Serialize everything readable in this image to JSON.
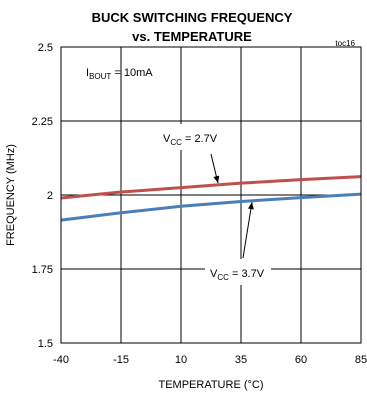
{
  "chart_data": {
    "type": "line",
    "title_line1": "BUCK SWITCHING FREQUENCY",
    "title_line2": "vs. TEMPERATURE",
    "figure_code": "toc16",
    "xlabel": "TEMPERATURE (°C)",
    "ylabel": "FREQUENCY (MHz)",
    "xlim": [
      -40,
      85
    ],
    "ylim": [
      1.5,
      2.5
    ],
    "x_ticks": [
      -40,
      -15,
      10,
      35,
      60,
      85
    ],
    "y_ticks": [
      1.5,
      1.75,
      2,
      2.25,
      2.5
    ],
    "x_tick_labels": [
      "-40",
      "-15",
      "10",
      "35",
      "60",
      "85"
    ],
    "y_tick_labels": [
      "1.5",
      "1.75",
      "2",
      "2.25",
      "2.5"
    ],
    "grid": true,
    "condition": {
      "main": "I",
      "sub": "BOUT",
      "rest": " = 10mA"
    },
    "series": [
      {
        "name": "VCC = 2.7V",
        "label_main": "V",
        "label_sub": "CC",
        "label_rest": " = 2.7V",
        "color": "#c0504d",
        "x": [
          -40,
          -15,
          10,
          35,
          60,
          85
        ],
        "y": [
          1.99,
          2.01,
          2.025,
          2.04,
          2.052,
          2.062
        ]
      },
      {
        "name": "VCC = 3.7V",
        "label_main": "V",
        "label_sub": "CC",
        "label_rest": " = 3.7V",
        "color": "#4a7ebb",
        "x": [
          -40,
          -15,
          10,
          35,
          60,
          85
        ],
        "y": [
          1.915,
          1.94,
          1.962,
          1.978,
          1.991,
          2.003
        ]
      }
    ]
  }
}
